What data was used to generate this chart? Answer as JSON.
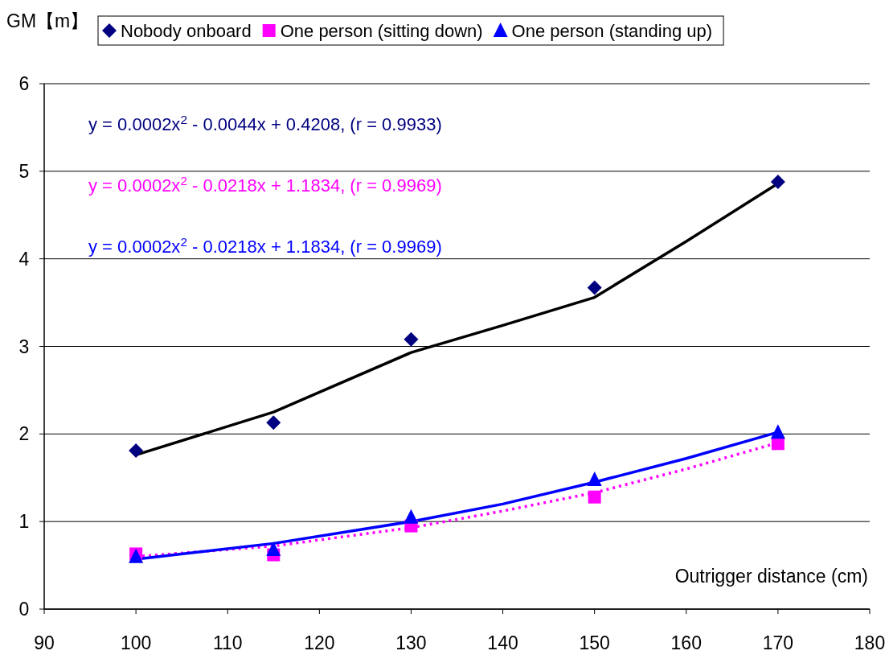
{
  "chart_data": {
    "type": "scatter",
    "xlabel": "Outrigger distance (cm)",
    "ylabel": "GM【m】",
    "xlim": [
      90,
      180
    ],
    "xticks": [
      90,
      100,
      110,
      120,
      130,
      140,
      150,
      160,
      170,
      180
    ],
    "ylim": [
      0,
      6
    ],
    "yticks": [
      0,
      1,
      2,
      3,
      4,
      5,
      6
    ],
    "grid": "y",
    "legend": "top",
    "annotations": [
      "y = 0.0002x$^{2}$ - 0.0044x + 0.4208, (r = 0.9933)",
      "y = 0.0002x$^{2}$ - 0.0218x + 1.1834, (r = 0.9969)",
      "y = 0.0002x$^{2}$ - 0.0218x + 1.1834, (r = 0.9969)"
    ],
    "series": [
      {
        "name": "Nobody onboard",
        "type": "scatter",
        "marker": "diamond",
        "color": "#000080",
        "x": [
          100,
          115,
          130,
          150,
          170
        ],
        "values": [
          1.81,
          2.13,
          3.08,
          3.67,
          4.88
        ]
      },
      {
        "name": "One person (sitting down)",
        "type": "scatter",
        "marker": "square",
        "color": "#ff00ff",
        "x": [
          100,
          115,
          130,
          150,
          170
        ],
        "values": [
          0.63,
          0.62,
          0.95,
          1.28,
          1.89
        ]
      },
      {
        "name": "One person (standing up)",
        "type": "scatter",
        "marker": "triangle",
        "color": "#0000ff",
        "x": [
          100,
          115,
          130,
          150,
          170
        ],
        "values": [
          0.6,
          0.68,
          1.05,
          1.48,
          2.02
        ]
      },
      {
        "type": "line",
        "color": "#000000",
        "line_style": "solid",
        "x": [
          100,
          115,
          130,
          140,
          150,
          160,
          170
        ],
        "values": [
          1.76,
          2.25,
          2.93,
          3.24,
          3.56,
          4.2,
          4.86
        ]
      },
      {
        "type": "line",
        "color": "#ff00ff",
        "line_style": "dotted",
        "x": [
          100,
          115,
          130,
          140,
          150,
          160,
          170
        ],
        "values": [
          0.6,
          0.72,
          0.93,
          1.12,
          1.33,
          1.6,
          1.9
        ]
      },
      {
        "type": "line",
        "color": "#0000ff",
        "line_style": "solid",
        "x": [
          100,
          115,
          130,
          140,
          150,
          160,
          170
        ],
        "values": [
          0.57,
          0.75,
          1.0,
          1.2,
          1.45,
          1.72,
          2.02
        ]
      }
    ]
  }
}
